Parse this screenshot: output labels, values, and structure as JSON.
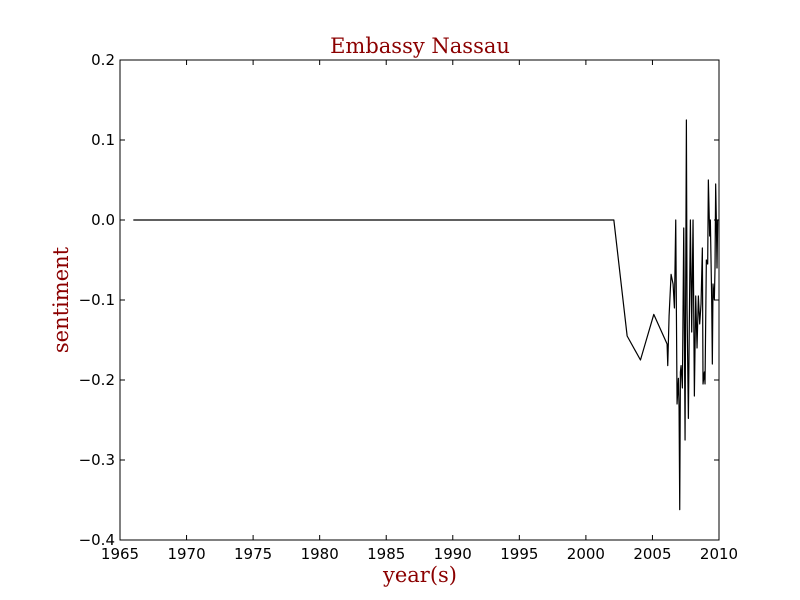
{
  "chart_data": {
    "type": "line",
    "title": "Embassy Nassau",
    "xlabel": "year(s)",
    "ylabel": "sentiment",
    "xlim": [
      1965,
      2010
    ],
    "ylim": [
      -0.4,
      0.2
    ],
    "xticks": [
      1965,
      1970,
      1975,
      1980,
      1985,
      1990,
      1995,
      2000,
      2005,
      2010
    ],
    "yticks": [
      -0.4,
      -0.3,
      -0.2,
      -0.1,
      0.0,
      0.1,
      0.2
    ],
    "xtick_labels": [
      "1965",
      "1970",
      "1975",
      "1980",
      "1985",
      "1990",
      "1995",
      "2000",
      "2005",
      "2010"
    ],
    "ytick_labels": [
      "−0.4",
      "−0.3",
      "−0.2",
      "−0.1",
      "0.0",
      "0.1",
      "0.2"
    ],
    "grid": false,
    "line_color": "#000000",
    "series": [
      {
        "x": [
          1966.0,
          2002.1,
          2003.1,
          2004.1,
          2005.1,
          2006.1,
          2006.15,
          2006.25,
          2006.4,
          2006.55,
          2006.65,
          2006.75,
          2006.85,
          2006.95,
          2007.0,
          2007.05,
          2007.1,
          2007.15,
          2007.25,
          2007.35,
          2007.45,
          2007.55,
          2007.6,
          2007.7,
          2007.8,
          2007.85,
          2007.95,
          2008.05,
          2008.15,
          2008.25,
          2008.35,
          2008.45,
          2008.55,
          2008.65,
          2008.75,
          2008.8,
          2008.9,
          2008.95,
          2009.05,
          2009.15,
          2009.2,
          2009.3,
          2009.35,
          2009.45,
          2009.5,
          2009.55,
          2009.65,
          2009.7,
          2009.75,
          2009.8,
          2009.85,
          2009.9,
          2009.95
        ],
        "y": [
          0.0,
          0.0,
          -0.145,
          -0.175,
          -0.118,
          -0.155,
          -0.182,
          -0.12,
          -0.068,
          -0.08,
          -0.11,
          0.0,
          -0.23,
          -0.198,
          -0.235,
          -0.362,
          -0.19,
          -0.182,
          -0.21,
          -0.01,
          -0.275,
          0.125,
          -0.11,
          -0.248,
          -0.08,
          0.0,
          -0.14,
          0.0,
          -0.22,
          -0.095,
          -0.16,
          -0.095,
          -0.13,
          -0.105,
          -0.035,
          -0.205,
          -0.19,
          -0.205,
          -0.05,
          -0.055,
          0.05,
          -0.02,
          0.0,
          -0.1,
          -0.18,
          -0.08,
          -0.1,
          -0.06,
          0.045,
          0.0,
          -0.06,
          0.0,
          0.0
        ]
      }
    ]
  }
}
